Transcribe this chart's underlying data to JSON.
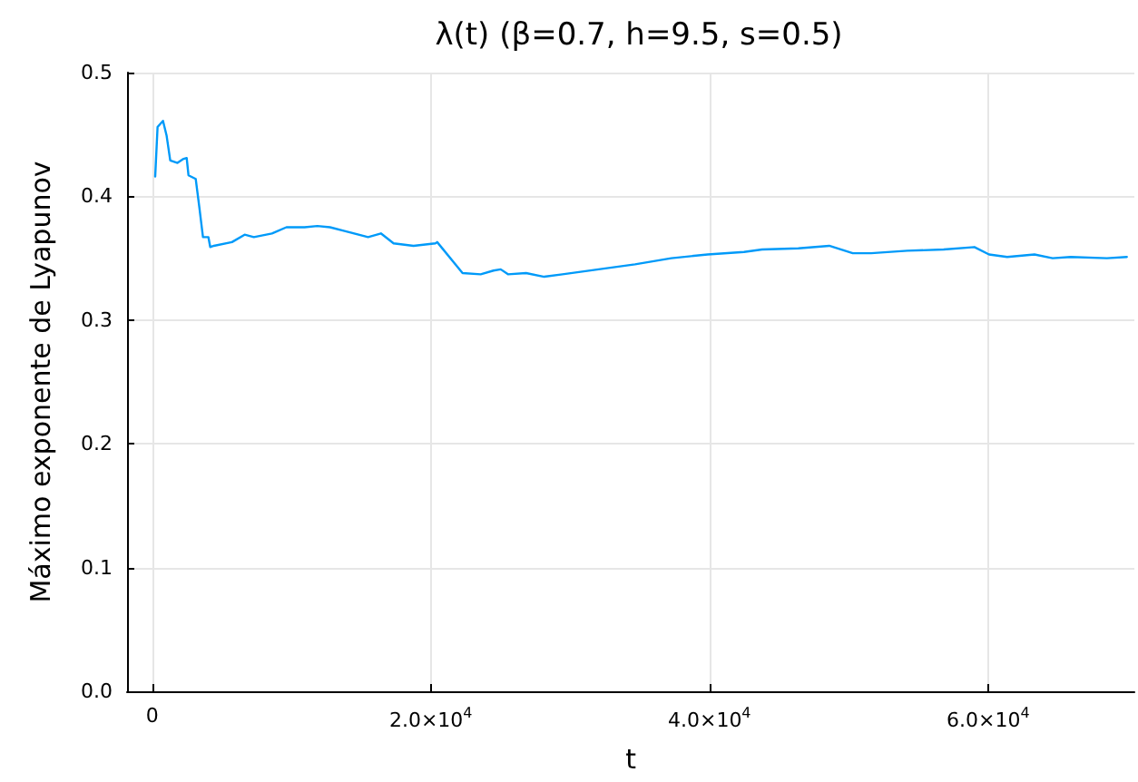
{
  "chart_data": {
    "type": "line",
    "title": "λ(t) (β=0.7, h=9.5, s=0.5)",
    "xlabel": "t",
    "ylabel": "Máximo exponente de Lyapunov",
    "x": [
      220,
      390,
      780,
      1040,
      1300,
      1820,
      2210,
      2480,
      2610,
      3130,
      3390,
      3650,
      4040,
      4170,
      4430,
      5730,
      6640,
      7300,
      8600,
      9640,
      10940,
      11860,
      12770,
      13810,
      15500,
      16420,
      17330,
      18760,
      20330,
      20460,
      22280,
      23580,
      24500,
      25020,
      25540,
      26840,
      28140,
      29450,
      32050,
      34660,
      37260,
      39870,
      42480,
      43780,
      46380,
      48600,
      50290,
      51600,
      54200,
      56810,
      59020,
      60070,
      61370,
      63330,
      64630,
      65930,
      68530,
      69960
    ],
    "series": [
      {
        "color": "#009af9",
        "values": [
          0.416,
          0.456,
          0.461,
          0.449,
          0.429,
          0.427,
          0.43,
          0.431,
          0.417,
          0.414,
          0.391,
          0.367,
          0.367,
          0.359,
          0.36,
          0.363,
          0.369,
          0.367,
          0.37,
          0.375,
          0.375,
          0.376,
          0.375,
          0.372,
          0.367,
          0.37,
          0.362,
          0.36,
          0.362,
          0.363,
          0.338,
          0.337,
          0.34,
          0.341,
          0.337,
          0.338,
          0.335,
          0.337,
          0.341,
          0.345,
          0.35,
          0.353,
          0.355,
          0.357,
          0.358,
          0.36,
          0.354,
          0.354,
          0.356,
          0.357,
          0.359,
          0.353,
          0.351,
          0.353,
          0.35,
          0.351,
          0.35,
          0.351
        ]
      }
    ],
    "xlim": [
      -1800,
      70500
    ],
    "xticks": [
      0,
      {
        "value": 20000,
        "label": "2.0×10$^{4}$"
      },
      {
        "value": 40000,
        "label": "4.0×10$^{4}$"
      },
      {
        "value": 60000,
        "label": "6.0×10$^{4}$"
      }
    ],
    "ylim": [
      0,
      0.5
    ],
    "yticks": [
      {
        "value": 0,
        "label": "0.0"
      },
      0.1,
      0.2,
      0.3,
      0.4,
      0.5
    ],
    "grid": true,
    "marker": "none",
    "line_style": "solid"
  }
}
